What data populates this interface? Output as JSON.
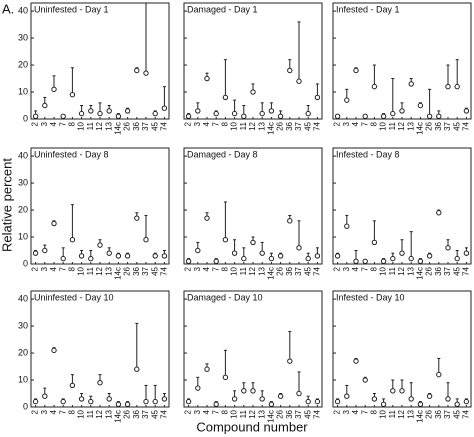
{
  "panel_label": "A.",
  "y_label": "Relative percent",
  "x_label": "Compound number",
  "chart_data": [
    {
      "type": "errorbar",
      "title": "Uninfested - Day 1",
      "categories": [
        "2",
        "3",
        "4",
        "7",
        "8",
        "10",
        "11",
        "12",
        "13",
        "14c",
        "26",
        "36",
        "37",
        "45",
        "74"
      ],
      "values": [
        1,
        5,
        11,
        1,
        9,
        2,
        3,
        2,
        3,
        1,
        3,
        18,
        17,
        2,
        4
      ],
      "errors": [
        2,
        3,
        5,
        0,
        10,
        3,
        2,
        4,
        2,
        1,
        1,
        1,
        26,
        1,
        8
      ],
      "ylim": [
        0,
        43
      ],
      "yticks": [
        0,
        10,
        20,
        30,
        40
      ]
    },
    {
      "type": "errorbar",
      "title": "Damaged - Day 1",
      "categories": [
        "2",
        "3",
        "4",
        "7",
        "8",
        "10",
        "11",
        "12",
        "13",
        "14c",
        "26",
        "36",
        "37",
        "45",
        "74"
      ],
      "values": [
        1,
        3,
        15,
        2,
        8,
        2,
        1,
        10,
        2,
        3,
        1,
        18,
        14,
        2,
        8
      ],
      "errors": [
        1,
        3,
        2,
        1,
        14,
        5,
        4,
        3,
        4,
        3,
        2,
        4,
        22,
        3,
        5
      ],
      "ylim": [
        0,
        43
      ],
      "yticks": [
        0,
        10,
        20,
        30,
        40
      ]
    },
    {
      "type": "errorbar",
      "title": "Infested - Day 1",
      "categories": [
        "2",
        "3",
        "4",
        "7",
        "8",
        "10",
        "11",
        "12",
        "13",
        "14c",
        "26",
        "36",
        "37",
        "45",
        "74"
      ],
      "values": [
        1,
        7,
        18,
        1,
        12,
        1,
        2,
        3,
        13,
        5,
        1,
        1,
        12,
        12,
        3
      ],
      "errors": [
        0,
        4,
        1,
        0,
        8,
        1,
        13,
        3,
        2,
        1,
        10,
        2,
        8,
        10,
        1
      ],
      "ylim": [
        0,
        43
      ],
      "yticks": [
        0,
        10,
        20,
        30,
        40
      ]
    },
    {
      "type": "errorbar",
      "title": "Uninfested - Day 8",
      "categories": [
        "2",
        "3",
        "4",
        "7",
        "8",
        "10",
        "11",
        "12",
        "13",
        "14c",
        "26",
        "36",
        "37",
        "45",
        "74"
      ],
      "values": [
        4,
        5,
        15,
        2,
        9,
        3,
        2,
        7,
        4,
        3,
        3,
        17,
        9,
        3,
        3
      ],
      "errors": [
        1,
        2,
        1,
        4,
        13,
        2,
        3,
        2,
        2,
        1,
        1,
        2,
        9,
        1,
        2
      ],
      "ylim": [
        0,
        43
      ],
      "yticks": [
        0,
        10,
        20,
        30,
        40
      ]
    },
    {
      "type": "errorbar",
      "title": "Damaged - Day 8",
      "categories": [
        "2",
        "3",
        "4",
        "7",
        "8",
        "10",
        "11",
        "12",
        "13",
        "14c",
        "26",
        "36",
        "37",
        "45",
        "74"
      ],
      "values": [
        1,
        5,
        17,
        1,
        9,
        4,
        2,
        8,
        4,
        2,
        3,
        16,
        6,
        2,
        3
      ],
      "errors": [
        1,
        3,
        2,
        1,
        14,
        5,
        4,
        2,
        4,
        2,
        1,
        2,
        10,
        2,
        3
      ],
      "ylim": [
        0,
        43
      ],
      "yticks": [
        0,
        10,
        20,
        30,
        40
      ]
    },
    {
      "type": "errorbar",
      "title": "Infested - Day 8",
      "categories": [
        "2",
        "3",
        "4",
        "7",
        "8",
        "10",
        "11",
        "12",
        "13",
        "14c",
        "26",
        "36",
        "37",
        "45",
        "74"
      ],
      "values": [
        3,
        14,
        1,
        1,
        8,
        1,
        2,
        4,
        2,
        1,
        3,
        19,
        6,
        2,
        4
      ],
      "errors": [
        1,
        4,
        4,
        0,
        8,
        1,
        2,
        5,
        10,
        1,
        1,
        1,
        3,
        3,
        2
      ],
      "ylim": [
        0,
        43
      ],
      "yticks": [
        0,
        10,
        20,
        30,
        40
      ]
    },
    {
      "type": "errorbar",
      "title": "Uninfested - Day 10",
      "categories": [
        "2",
        "3",
        "4",
        "7",
        "8",
        "10",
        "11",
        "12",
        "13",
        "14c",
        "26",
        "36",
        "37",
        "45",
        "74"
      ],
      "values": [
        2,
        4,
        21,
        2,
        8,
        3,
        2,
        9,
        3,
        1,
        1,
        14,
        2,
        2,
        3
      ],
      "errors": [
        1,
        3,
        1,
        1,
        4,
        2,
        2,
        3,
        2,
        1,
        1,
        17,
        6,
        6,
        2
      ],
      "ylim": [
        0,
        43
      ],
      "yticks": [
        0,
        10,
        20,
        30,
        40
      ]
    },
    {
      "type": "errorbar",
      "title": "Damaged - Day 10",
      "categories": [
        "2",
        "3",
        "4",
        "7",
        "8",
        "10",
        "11",
        "12",
        "13",
        "14c",
        "26",
        "36",
        "37",
        "45",
        "74"
      ],
      "values": [
        2,
        7,
        14,
        1,
        11,
        3,
        6,
        6,
        3,
        1,
        4,
        17,
        5,
        2,
        2
      ],
      "errors": [
        1,
        4,
        2,
        1,
        10,
        3,
        3,
        3,
        3,
        1,
        1,
        11,
        8,
        2,
        1
      ],
      "ylim": [
        0,
        43
      ],
      "yticks": [
        0,
        10,
        20,
        30,
        40
      ]
    },
    {
      "type": "errorbar",
      "title": "Infested - Day 10",
      "categories": [
        "2",
        "3",
        "4",
        "7",
        "8",
        "10",
        "11",
        "12",
        "13",
        "14c",
        "26",
        "36",
        "37",
        "45",
        "74"
      ],
      "values": [
        2,
        4,
        17,
        10,
        3,
        1,
        6,
        6,
        3,
        1,
        4,
        12,
        3,
        1,
        2
      ],
      "errors": [
        1,
        4,
        1,
        1,
        2,
        2,
        4,
        4,
        6,
        1,
        1,
        6,
        6,
        2,
        1
      ],
      "ylim": [
        0,
        43
      ],
      "yticks": [
        0,
        10,
        20,
        30,
        40
      ]
    }
  ]
}
